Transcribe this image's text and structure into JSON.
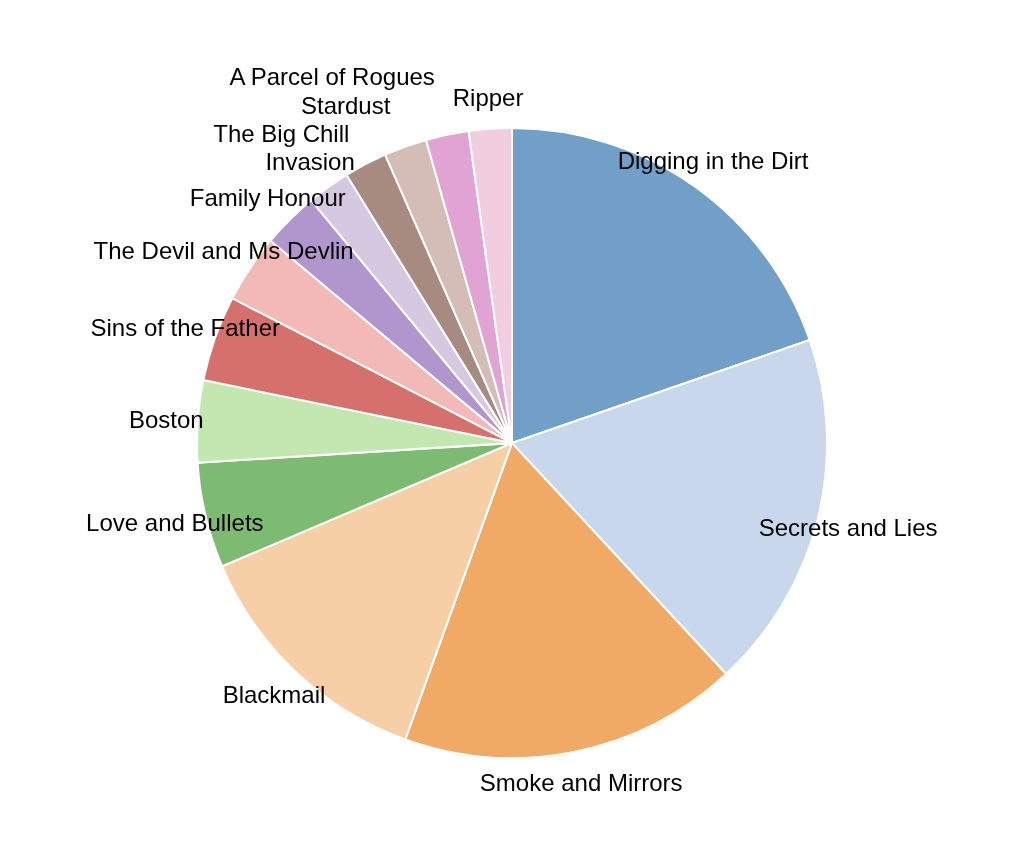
{
  "chart_data": {
    "type": "pie",
    "categories": [
      "Digging in the Dirt",
      "Secrets and Lies",
      "Smoke and Mirrors",
      "Blackmail",
      "Love and Bullets",
      "Boston",
      "Sins of the Father",
      "The Devil and Ms Devlin",
      "Family Honour",
      "Invasion",
      "The Big Chill",
      "Stardust",
      "A Parcel of Rogues",
      "Ripper"
    ],
    "values": [
      19.7,
      18.4,
      17.4,
      13.1,
      5.4,
      4.2,
      4.4,
      3.5,
      2.9,
      2.2,
      2.2,
      2.2,
      2.2,
      2.2
    ],
    "colors": [
      "#719fc8",
      "#c8d7ec",
      "#f1aa66",
      "#f6cfa6",
      "#7ebb72",
      "#c3e7b0",
      "#d5706d",
      "#f2b9b6",
      "#b096cd",
      "#d5c8e1",
      "#a88b80",
      "#d3bdb6",
      "#e0a3d3",
      "#f2cde0"
    ],
    "legend": false
  }
}
